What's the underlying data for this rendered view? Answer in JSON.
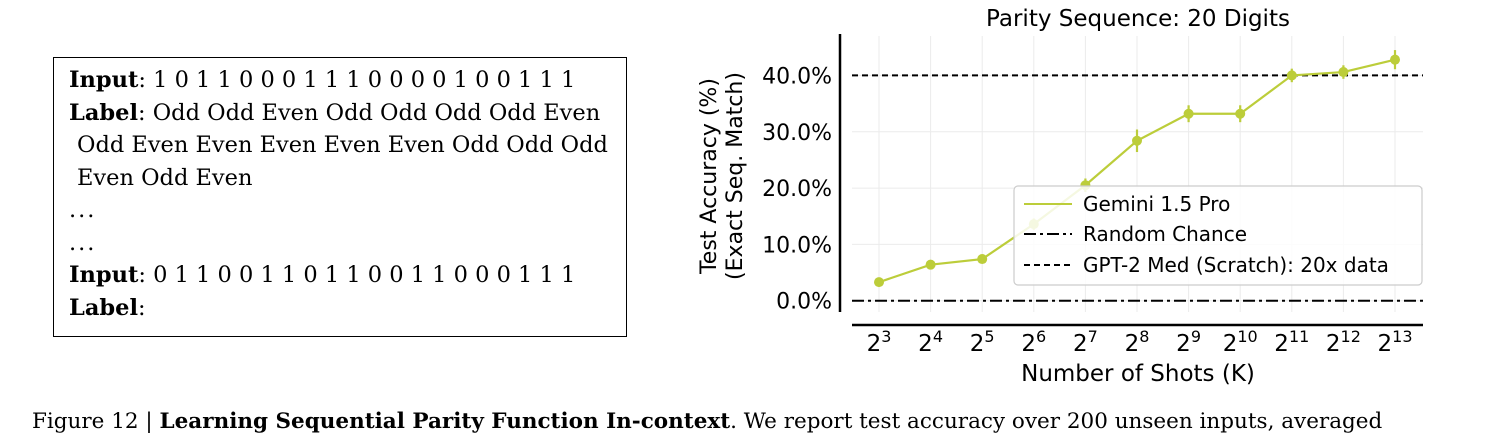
{
  "prompt": {
    "input_label": "Input",
    "input_value": ": 1 0 1 1 0 0 0 1 1 1 0 0 0 0 1 0 0 1 1 1",
    "label_label": "Label",
    "label_line1": ": Odd Odd Even Odd Odd Odd Odd Even",
    "label_line2": "Odd Even Even Even Even Even Odd Odd Odd",
    "label_line3": "Even Odd Even",
    "dots1": "...",
    "dots2": "...",
    "input2_label": "Input",
    "input2_value": ": 0 1 1 0 0 1 1 0 1 1 0 0 1 1 0 0 0 1 1 1",
    "label2_label": "Label",
    "label2_value": ":"
  },
  "chart_data": {
    "type": "line",
    "title": "Parity Sequence: 20 Digits",
    "xlabel": "Number of Shots (K)",
    "ylabel_line1": "Test Accuracy (%)",
    "ylabel_line2": "(Exact Seq. Match)",
    "x_tick_base": "2",
    "x_exponents": [
      "3",
      "4",
      "5",
      "6",
      "7",
      "8",
      "9",
      "10",
      "11",
      "12",
      "13"
    ],
    "y_ticks": [
      0,
      10,
      20,
      30,
      40
    ],
    "y_tick_labels": [
      "0.0%",
      "10.0%",
      "20.0%",
      "30.0%",
      "40.0%"
    ],
    "ylim": [
      -2,
      47
    ],
    "grid": true,
    "legend_position": "center-right",
    "series": [
      {
        "name": "Gemini 1.5 Pro",
        "color": "#bccd3a",
        "x": [
          3,
          4,
          5,
          6,
          7,
          8,
          9,
          10,
          11,
          12,
          13
        ],
        "y": [
          3.3,
          6.4,
          7.4,
          13.6,
          20.5,
          28.4,
          33.2,
          33.2,
          40.0,
          40.6,
          42.8
        ],
        "yerr": [
          0.6,
          0.6,
          0.6,
          1.0,
          1.2,
          2.0,
          1.5,
          1.5,
          1.2,
          1.2,
          1.7
        ]
      }
    ],
    "reference_lines": [
      {
        "name": "Random Chance",
        "y": 0,
        "style": "dashdot",
        "color": "#000000"
      },
      {
        "name": "GPT-2 Med (Scratch): 20x data",
        "y": 40,
        "style": "dashed",
        "color": "#000000"
      }
    ]
  },
  "caption": {
    "prefix": "Figure 12 | ",
    "title": "Learning Sequential Parity Function In-context",
    "text": ". We report test accuracy over 200 unseen inputs, averaged"
  }
}
